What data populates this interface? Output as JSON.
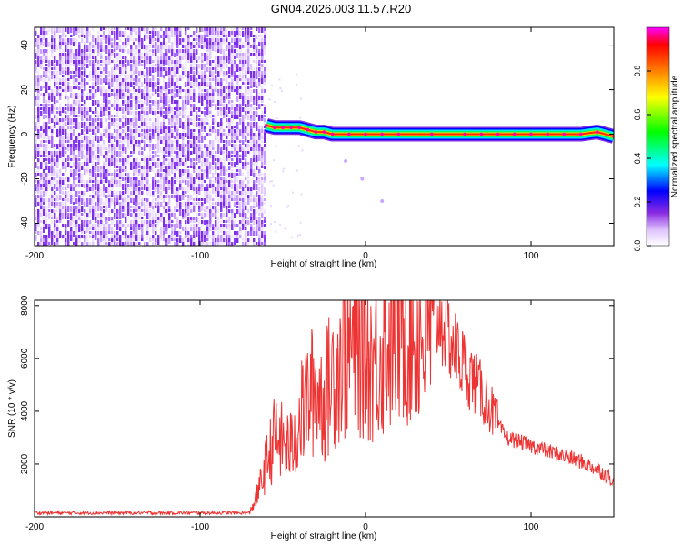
{
  "title": "GN04.2026.003.11.57.R20",
  "chart_data": [
    {
      "type": "heatmap",
      "xlabel": "Height of straight line (km)",
      "ylabel": "Frequency (Hz)",
      "xlim": [
        -200,
        150
      ],
      "ylim": [
        -50,
        48
      ],
      "x_ticks": [
        -200,
        -100,
        0,
        100
      ],
      "y_ticks": [
        -40,
        -20,
        0,
        20,
        40
      ],
      "noise_region_x": [
        -200,
        -60
      ],
      "ridge": {
        "x": [
          -60,
          -55,
          -50,
          -45,
          -40,
          -35,
          -30,
          -25,
          -20,
          -10,
          0,
          10,
          20,
          40,
          60,
          70,
          80,
          90,
          100,
          110,
          120,
          130,
          140,
          150
        ],
        "y": [
          4,
          3,
          3,
          3,
          3,
          2,
          1,
          1,
          0,
          0,
          0,
          0,
          0,
          0,
          0,
          0,
          0,
          0,
          0,
          0,
          0,
          0,
          1,
          -1
        ]
      },
      "weak_trail": {
        "x": [
          -12,
          -2,
          10
        ],
        "y": [
          -12,
          -20,
          -30
        ]
      },
      "colorbar": {
        "label": "Normalized spectral amplitude",
        "range": [
          0,
          1
        ],
        "ticks": [
          "0.0",
          "0.2",
          "0.4",
          "0.6",
          "0.8"
        ],
        "colors": [
          "#ffffff",
          "#e0c6ff",
          "#8a2be2",
          "#0000ff",
          "#00ffff",
          "#00ff00",
          "#ffff00",
          "#ff8000",
          "#ff0000",
          "#ff00ff"
        ]
      }
    },
    {
      "type": "line",
      "xlabel": "Height of straight line (km)",
      "ylabel": "SNR (10 * v/v)",
      "xlim": [
        -200,
        150
      ],
      "ylim": [
        0,
        8200
      ],
      "x_ticks": [
        -200,
        -100,
        0,
        100
      ],
      "y_ticks": [
        2000,
        4000,
        6000,
        8000
      ],
      "color": "#ee3333",
      "series": [
        {
          "x": [
            -200,
            -70,
            -65,
            -60,
            -55,
            -50,
            -45,
            -40,
            -35,
            -30,
            -25,
            -20,
            -15,
            -10,
            -5,
            0,
            5,
            10,
            15,
            20,
            25,
            30,
            35,
            40,
            45,
            50,
            55,
            60,
            65,
            70,
            75,
            80,
            85,
            90,
            95,
            100,
            110,
            120,
            130,
            140,
            150
          ],
          "y": [
            150,
            150,
            900,
            2000,
            3000,
            2800,
            2600,
            3600,
            4500,
            4900,
            4400,
            5400,
            6000,
            6300,
            6600,
            6200,
            5900,
            6300,
            6700,
            7100,
            7300,
            7100,
            6900,
            7300,
            7600,
            6900,
            6200,
            5700,
            5200,
            4700,
            4200,
            3500,
            3000,
            2900,
            2800,
            2700,
            2500,
            2300,
            2100,
            1800,
            1400
          ]
        }
      ]
    }
  ]
}
